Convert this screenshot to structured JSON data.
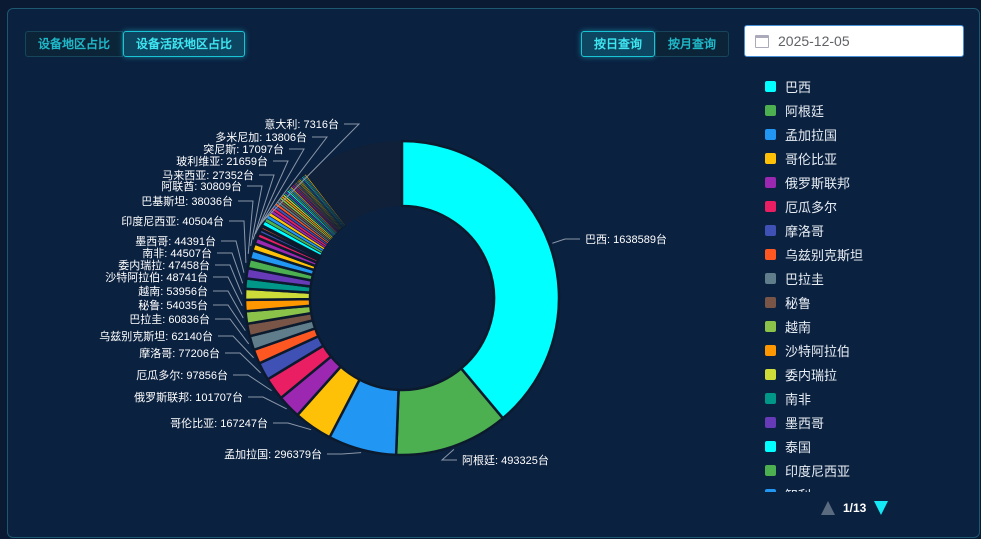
{
  "tabs": [
    {
      "label": "设备地区占比",
      "active": false
    },
    {
      "label": "设备活跃地区占比",
      "active": true
    }
  ],
  "query": [
    {
      "label": "按日查询",
      "active": true
    },
    {
      "label": "按月查询",
      "active": false
    }
  ],
  "date": {
    "value": "2025-12-05",
    "icon": "calendar-icon"
  },
  "legend": {
    "items": [
      "巴西",
      "阿根廷",
      "孟加拉国",
      "哥伦比亚",
      "俄罗斯联邦",
      "厄瓜多尔",
      "摩洛哥",
      "乌兹别克斯坦",
      "巴拉圭",
      "秘鲁",
      "越南",
      "沙特阿拉伯",
      "委内瑞拉",
      "南非",
      "墨西哥",
      "泰国",
      "印度尼西亚",
      "智利"
    ],
    "colors": [
      "#00ffff",
      "#4caf50",
      "#2196f3",
      "#ffc107",
      "#9c27b0",
      "#e91e63",
      "#3f51b5",
      "#ff5722",
      "#607d8b",
      "#795548",
      "#8bc34a",
      "#ff9800",
      "#cddc39",
      "#009688",
      "#673ab7",
      "#00ffff",
      "#4caf50",
      "#2196f3"
    ],
    "page": "1/13"
  },
  "chart_data": {
    "type": "pie",
    "unit": "台",
    "donut": true,
    "categories": [
      "巴西",
      "阿根廷",
      "孟加拉国",
      "哥伦比亚",
      "俄罗斯联邦",
      "厄瓜多尔",
      "摩洛哥",
      "乌兹别克斯坦",
      "巴拉圭",
      "秘鲁",
      "越南",
      "沙特阿拉伯",
      "委内瑞拉",
      "南非",
      "墨西哥",
      "印度尼西亚",
      "巴基斯坦",
      "阿联酋",
      "马来西亚",
      "玻利维亚",
      "突尼斯",
      "多米尼加",
      "意大利"
    ],
    "values": [
      1638589,
      493325,
      296379,
      167247,
      101707,
      97856,
      77206,
      62140,
      60836,
      54035,
      53956,
      48741,
      47458,
      44507,
      44391,
      40504,
      38036,
      30809,
      27352,
      21659,
      17097,
      13806,
      7316
    ],
    "labels": [
      "巴西: 1638589台",
      "阿根廷: 493325台",
      "孟加拉国: 296379台",
      "哥伦比亚: 167247台",
      "俄罗斯联邦: 101707台",
      "厄瓜多尔: 97856台",
      "摩洛哥: 77206台",
      "乌兹别克斯坦: 62140台",
      "巴拉圭: 60836台",
      "秘鲁: 54035台",
      "越南: 53956台",
      "沙特阿拉伯: 48741台",
      "委内瑞拉: 47458台",
      "南非: 44507台",
      "墨西哥: 44391台",
      "印度尼西亚: 40504台",
      "巴基斯坦: 38036台",
      "阿联酋: 30809台",
      "马来西亚: 27352台",
      "玻利维亚: 21659台",
      "突尼斯: 17097台",
      "多米尼加: 13806台",
      "意大利: 7316台"
    ],
    "colors": [
      "#00ffff",
      "#4caf50",
      "#2196f3",
      "#ffc107",
      "#9c27b0",
      "#e91e63",
      "#3f51b5",
      "#ff5722",
      "#607d8b",
      "#795548",
      "#8bc34a",
      "#ff9800",
      "#cddc39",
      "#009688",
      "#673ab7",
      "#4caf50",
      "#2196f3",
      "#ffc107",
      "#9c27b0",
      "#e91e63",
      "#3f51b5",
      "#ff5722",
      "#607d8b"
    ]
  }
}
